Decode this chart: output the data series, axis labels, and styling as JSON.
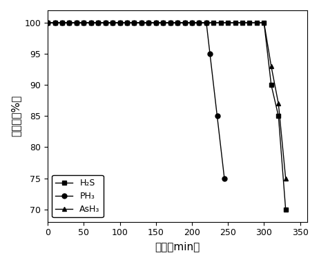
{
  "H2S": {
    "x": [
      0,
      10,
      20,
      30,
      40,
      50,
      60,
      70,
      80,
      90,
      100,
      110,
      120,
      130,
      140,
      150,
      160,
      170,
      180,
      190,
      200,
      210,
      220,
      230,
      240,
      250,
      260,
      270,
      280,
      290,
      300,
      310,
      320,
      330
    ],
    "y": [
      100,
      100,
      100,
      100,
      100,
      100,
      100,
      100,
      100,
      100,
      100,
      100,
      100,
      100,
      100,
      100,
      100,
      100,
      100,
      100,
      100,
      100,
      100,
      100,
      100,
      100,
      100,
      100,
      100,
      100,
      100,
      90,
      85,
      70
    ],
    "marker": "s",
    "label": "H₂S",
    "color": "black"
  },
  "PH3": {
    "x": [
      0,
      10,
      20,
      30,
      40,
      50,
      60,
      70,
      80,
      90,
      100,
      110,
      120,
      130,
      140,
      150,
      160,
      170,
      180,
      190,
      200,
      210,
      220,
      225,
      235,
      245
    ],
    "y": [
      100,
      100,
      100,
      100,
      100,
      100,
      100,
      100,
      100,
      100,
      100,
      100,
      100,
      100,
      100,
      100,
      100,
      100,
      100,
      100,
      100,
      100,
      100,
      95,
      85,
      75
    ],
    "marker": "o",
    "label": "PH₃",
    "color": "black"
  },
  "AsH3": {
    "x": [
      0,
      10,
      20,
      30,
      40,
      50,
      60,
      70,
      80,
      90,
      100,
      110,
      120,
      130,
      140,
      150,
      160,
      170,
      180,
      190,
      200,
      210,
      220,
      230,
      240,
      250,
      260,
      270,
      280,
      290,
      300,
      310,
      320,
      330
    ],
    "y": [
      100,
      100,
      100,
      100,
      100,
      100,
      100,
      100,
      100,
      100,
      100,
      100,
      100,
      100,
      100,
      100,
      100,
      100,
      100,
      100,
      100,
      100,
      100,
      100,
      100,
      100,
      100,
      100,
      100,
      100,
      100,
      93,
      87,
      75
    ],
    "marker": "^",
    "label": "AsH₃",
    "color": "black"
  },
  "xlabel": "时间（min）",
  "ylabel": "脱除率（%）",
  "xlim": [
    0,
    360
  ],
  "ylim": [
    68,
    102
  ],
  "xticks": [
    0,
    50,
    100,
    150,
    200,
    250,
    300,
    350
  ],
  "yticks": [
    70,
    75,
    80,
    85,
    90,
    95,
    100
  ],
  "markersize": 5,
  "linewidth": 1.0,
  "legend_fontsize": 9,
  "axis_fontsize": 11
}
